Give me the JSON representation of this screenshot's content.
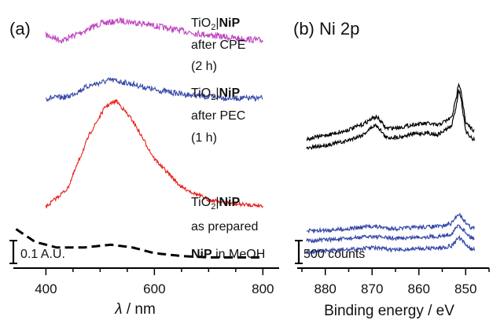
{
  "chart_data": [
    {
      "type": "line",
      "panel_label": "(a)",
      "xlabel_symbol": "λ",
      "xlabel_unit": " / nm",
      "x_ticks": [
        400,
        600,
        800
      ],
      "xlim": [
        340,
        830
      ],
      "scale_bar": "0.1 A.U.",
      "series": [
        {
          "color": "#c045c0",
          "style": "noisy",
          "x": [
            400,
            430,
            460,
            500,
            540,
            580,
            620,
            680,
            740,
            800
          ],
          "y": [
            0.02,
            -0.02,
            0.03,
            0.1,
            0.12,
            0.1,
            0.07,
            0.03,
            0.0,
            -0.02
          ],
          "label": {
            "l1a": "TiO",
            "l1sub": "2",
            "l1b": "|",
            "l1bold": "NiP",
            "l2": "after CPE",
            "l3": "(2 h)"
          }
        },
        {
          "color": "#3548a8",
          "style": "noisy",
          "x": [
            400,
            440,
            480,
            520,
            560,
            600,
            650,
            700,
            750,
            800
          ],
          "y": [
            0.0,
            0.01,
            0.09,
            0.13,
            0.1,
            0.06,
            0.03,
            0.01,
            0.0,
            0.0
          ],
          "label": {
            "l1a": "TiO",
            "l1sub": "2",
            "l1b": "|",
            "l1bold": "NiP",
            "l2": "after PEC",
            "l3": "(1 h)"
          }
        },
        {
          "color": "#e8201c",
          "style": "noisy",
          "x": [
            400,
            440,
            480,
            510,
            530,
            560,
            600,
            650,
            700,
            750,
            800
          ],
          "y": [
            0.01,
            0.14,
            0.52,
            0.72,
            0.76,
            0.62,
            0.35,
            0.15,
            0.06,
            0.03,
            0.02
          ],
          "label": {
            "l1a": "TiO",
            "l1sub": "2",
            "l1b": "|",
            "l1bold": "NiP",
            "l2": "as prepared"
          }
        },
        {
          "color": "#000000",
          "style": "dashed",
          "x": [
            345,
            380,
            420,
            470,
            520,
            560,
            600,
            650,
            700,
            800
          ],
          "y": [
            0.17,
            0.08,
            0.04,
            0.04,
            0.06,
            0.04,
            0.0,
            -0.02,
            -0.03,
            -0.03
          ],
          "label": {
            "bold": "NiP",
            "rest": " in MeOH"
          }
        }
      ]
    },
    {
      "type": "line",
      "panel_label": "(b) Ni 2p",
      "xlabel": "Binding energy / eV",
      "x_ticks": [
        880,
        870,
        860,
        850
      ],
      "xlim": [
        886,
        845
      ],
      "x_reversed": true,
      "scale_bar": "500 counts",
      "series": [
        {
          "color": "#000000",
          "x": [
            884,
            876,
            872,
            870,
            869,
            867,
            864,
            861,
            858,
            856,
            853,
            852,
            851.5,
            851,
            850,
            848
          ],
          "y": [
            0,
            40,
            75,
            105,
            115,
            55,
            60,
            75,
            80,
            70,
            110,
            210,
            290,
            250,
            80,
            40
          ]
        },
        {
          "color": "#000000",
          "x": [
            884,
            876,
            872,
            870,
            869,
            867,
            864,
            861,
            858,
            856,
            853,
            852,
            851.5,
            851,
            850,
            848
          ],
          "y": [
            -20,
            15,
            50,
            90,
            100,
            35,
            40,
            55,
            60,
            50,
            95,
            200,
            280,
            240,
            65,
            20
          ]
        },
        {
          "color": "#3548a8",
          "x": [
            884,
            876,
            870,
            865,
            860,
            855,
            853,
            852,
            851.5,
            850.5,
            849,
            848
          ],
          "y": [
            0,
            10,
            25,
            12,
            20,
            25,
            40,
            75,
            90,
            60,
            20,
            15
          ]
        },
        {
          "color": "#3548a8",
          "x": [
            884,
            876,
            870,
            865,
            860,
            855,
            853,
            852,
            851.5,
            850.5,
            849,
            848
          ],
          "y": [
            0,
            8,
            22,
            10,
            18,
            22,
            35,
            65,
            80,
            55,
            18,
            12
          ]
        },
        {
          "color": "#3548a8",
          "x": [
            884,
            876,
            870,
            865,
            860,
            855,
            853,
            852,
            851.5,
            850.5,
            849,
            848
          ],
          "y": [
            0,
            8,
            20,
            8,
            15,
            20,
            30,
            58,
            72,
            48,
            15,
            10
          ]
        }
      ]
    }
  ]
}
